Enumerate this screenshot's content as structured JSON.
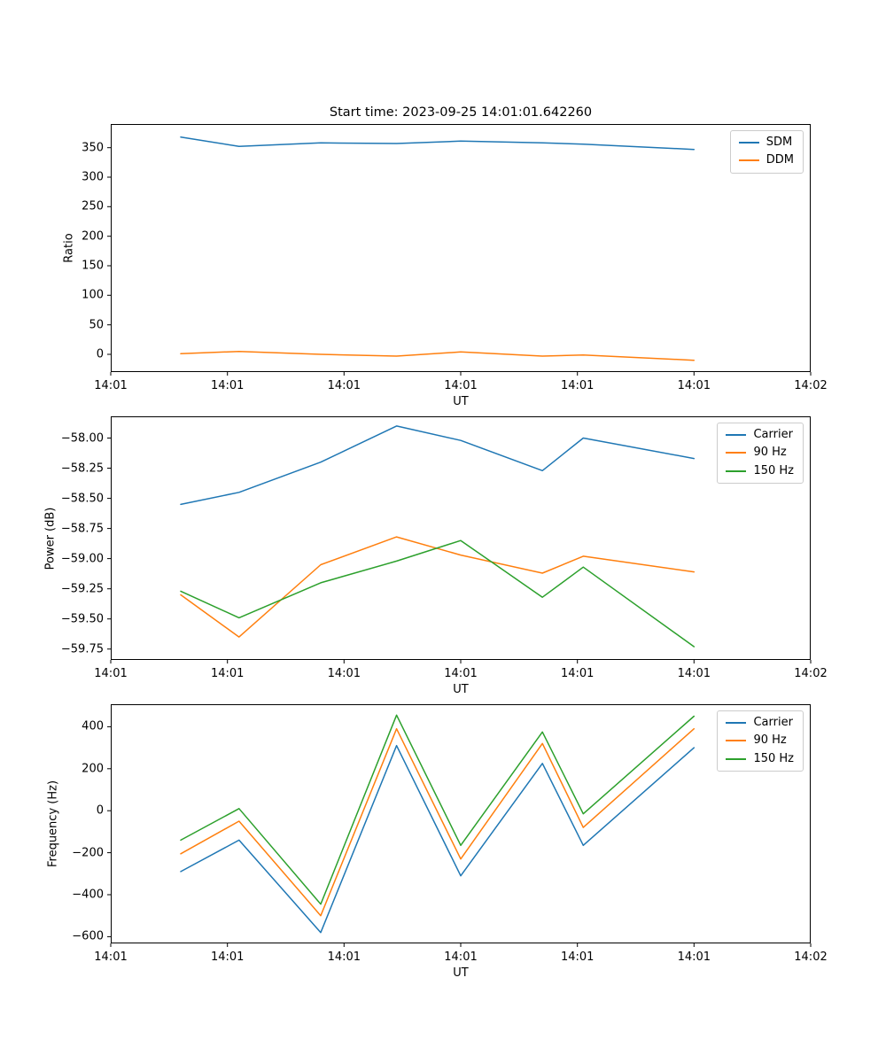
{
  "title": "Start time: 2023-09-25 14:01:01.642260",
  "colors": {
    "blue": "#1f77b4",
    "orange": "#ff7f0e",
    "green": "#2ca02c"
  },
  "chart_data": [
    {
      "type": "line",
      "ylabel": "Ratio",
      "xlabel": "UT",
      "xlim": [
        0,
        60
      ],
      "ylim": [
        -30,
        390
      ],
      "grid": false,
      "legend_position": "upper right",
      "xticks": [
        {
          "v": 0,
          "label": "14:01"
        },
        {
          "v": 10,
          "label": "14:01"
        },
        {
          "v": 20,
          "label": "14:01"
        },
        {
          "v": 30,
          "label": "14:01"
        },
        {
          "v": 40,
          "label": "14:01"
        },
        {
          "v": 50,
          "label": "14:01"
        },
        {
          "v": 60,
          "label": "14:02"
        }
      ],
      "yticks": [
        {
          "v": 0,
          "label": "0"
        },
        {
          "v": 50,
          "label": "50"
        },
        {
          "v": 100,
          "label": "100"
        },
        {
          "v": 150,
          "label": "150"
        },
        {
          "v": 200,
          "label": "200"
        },
        {
          "v": 250,
          "label": "250"
        },
        {
          "v": 300,
          "label": "300"
        },
        {
          "v": 350,
          "label": "350"
        }
      ],
      "x": [
        6,
        11,
        18,
        24.5,
        30,
        37,
        40.5,
        50
      ],
      "series": [
        {
          "name": "SDM",
          "color": "#1f77b4",
          "values": [
            368,
            352,
            358,
            357,
            361,
            358,
            356,
            347
          ]
        },
        {
          "name": "DDM",
          "color": "#ff7f0e",
          "values": [
            1,
            5,
            0,
            -3,
            4,
            -3,
            -1,
            -10
          ]
        }
      ]
    },
    {
      "type": "line",
      "ylabel": "Power (dB)",
      "xlabel": "UT",
      "xlim": [
        0,
        60
      ],
      "ylim": [
        -59.84,
        -57.82
      ],
      "grid": false,
      "legend_position": "upper right",
      "xticks": [
        {
          "v": 0,
          "label": "14:01"
        },
        {
          "v": 10,
          "label": "14:01"
        },
        {
          "v": 20,
          "label": "14:01"
        },
        {
          "v": 30,
          "label": "14:01"
        },
        {
          "v": 40,
          "label": "14:01"
        },
        {
          "v": 50,
          "label": "14:01"
        },
        {
          "v": 60,
          "label": "14:02"
        }
      ],
      "yticks": [
        {
          "v": -59.75,
          "label": "−59.75"
        },
        {
          "v": -59.5,
          "label": "−59.50"
        },
        {
          "v": -59.25,
          "label": "−59.25"
        },
        {
          "v": -59.0,
          "label": "−59.00"
        },
        {
          "v": -58.75,
          "label": "−58.75"
        },
        {
          "v": -58.5,
          "label": "−58.50"
        },
        {
          "v": -58.25,
          "label": "−58.25"
        },
        {
          "v": -58.0,
          "label": "−58.00"
        }
      ],
      "x": [
        6,
        11,
        18,
        24.5,
        30,
        37,
        40.5,
        50
      ],
      "series": [
        {
          "name": "Carrier",
          "color": "#1f77b4",
          "values": [
            -58.55,
            -58.45,
            -58.2,
            -57.9,
            -58.02,
            -58.27,
            -58.0,
            -58.17
          ]
        },
        {
          "name": "90 Hz",
          "color": "#ff7f0e",
          "values": [
            -59.3,
            -59.65,
            -59.05,
            -58.82,
            -58.97,
            -59.12,
            -58.98,
            -59.11
          ]
        },
        {
          "name": "150 Hz",
          "color": "#2ca02c",
          "values": [
            -59.27,
            -59.49,
            -59.2,
            -59.02,
            -58.85,
            -59.32,
            -59.07,
            -59.73
          ]
        }
      ]
    },
    {
      "type": "line",
      "ylabel": "Frequency (Hz)",
      "xlabel": "UT",
      "xlim": [
        0,
        60
      ],
      "ylim": [
        -632,
        507
      ],
      "grid": false,
      "legend_position": "upper right",
      "xticks": [
        {
          "v": 0,
          "label": "14:01"
        },
        {
          "v": 10,
          "label": "14:01"
        },
        {
          "v": 20,
          "label": "14:01"
        },
        {
          "v": 30,
          "label": "14:01"
        },
        {
          "v": 40,
          "label": "14:01"
        },
        {
          "v": 50,
          "label": "14:01"
        },
        {
          "v": 60,
          "label": "14:02"
        }
      ],
      "yticks": [
        {
          "v": -600,
          "label": "−600"
        },
        {
          "v": -400,
          "label": "−400"
        },
        {
          "v": -200,
          "label": "−200"
        },
        {
          "v": 0,
          "label": "0"
        },
        {
          "v": 200,
          "label": "200"
        },
        {
          "v": 400,
          "label": "400"
        }
      ],
      "x": [
        6,
        11,
        18,
        24.5,
        30,
        37,
        40.5,
        50
      ],
      "series": [
        {
          "name": "Carrier",
          "color": "#1f77b4",
          "values": [
            -290,
            -140,
            -580,
            310,
            -310,
            225,
            -165,
            300
          ]
        },
        {
          "name": "90 Hz",
          "color": "#ff7f0e",
          "values": [
            -205,
            -50,
            -500,
            390,
            -230,
            320,
            -80,
            390
          ]
        },
        {
          "name": "150 Hz",
          "color": "#2ca02c",
          "values": [
            -140,
            10,
            -445,
            455,
            -165,
            375,
            -15,
            450
          ]
        }
      ]
    }
  ]
}
